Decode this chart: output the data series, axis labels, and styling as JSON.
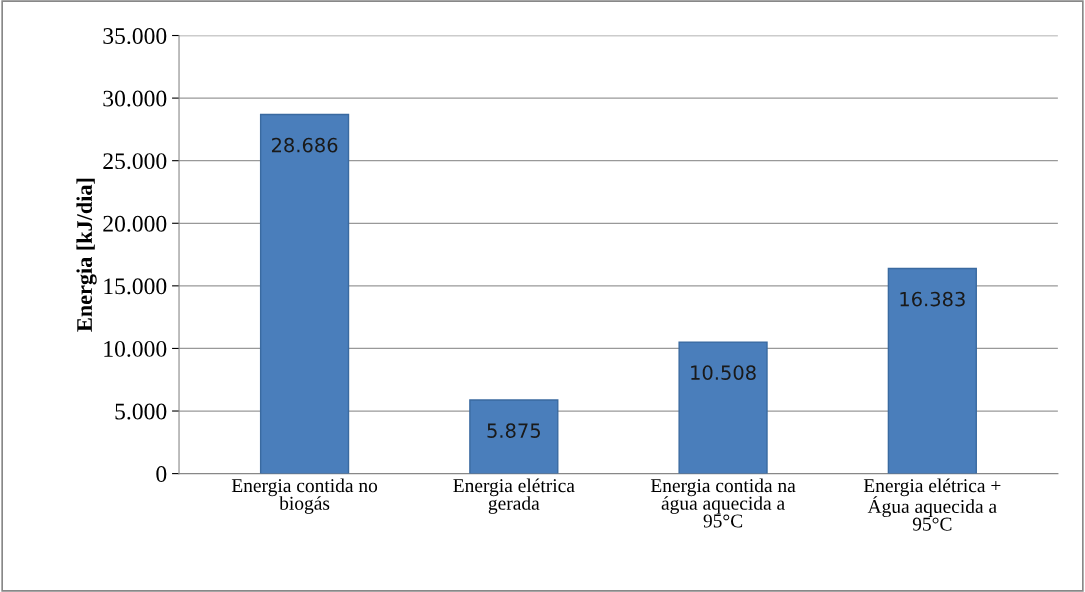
{
  "chart_data": {
    "type": "bar",
    "ylabel": "Energia [kJ/dia]",
    "categories": [
      "Energia contida no\nbiogás",
      "Energia elétrica\ngerada",
      "Energia contida na\nágua aquecida a\n95°C",
      "Energia elétrica +\nÁgua aquecida a\n95°C"
    ],
    "values": [
      28686,
      5875,
      10508,
      16383
    ],
    "value_labels": [
      "28.686",
      "5.875",
      "10.508",
      "16.383"
    ],
    "color": "#4a7ebb",
    "ylim": [
      0,
      35000
    ],
    "yticks": [
      0,
      {
        "value": 5000,
        "label": "5.000"
      },
      {
        "value": 10000,
        "label": "10.000"
      },
      {
        "value": 15000,
        "label": "15.000"
      },
      {
        "value": 20000,
        "label": "20.000"
      },
      {
        "value": 25000,
        "label": "25.000"
      },
      {
        "value": 30000,
        "label": "30.000"
      },
      {
        "value": 35000,
        "label": "35.000"
      }
    ],
    "grid": "y",
    "legend": false
  }
}
